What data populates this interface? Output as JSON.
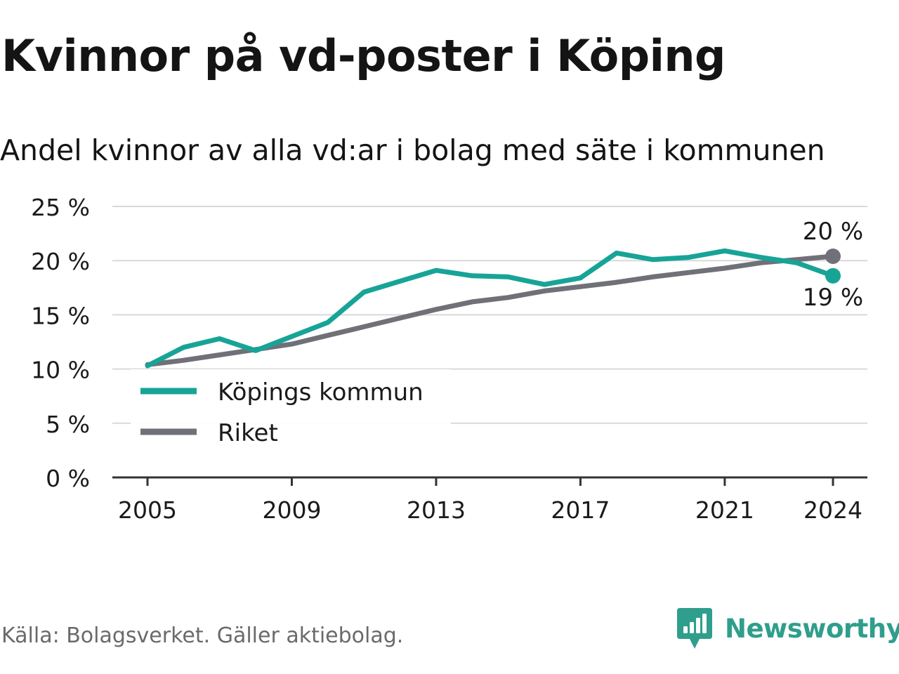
{
  "header": {
    "title": "Kvinnor på vd-poster i Köping",
    "subtitle": "Andel kvinnor av alla vd:ar i bolag med säte i kommunen"
  },
  "footer": {
    "source": "Källa: Bolagsverket. Gäller aktiebolag.",
    "logo_text": "Newsworthy"
  },
  "colors": {
    "kommun": "#17a497",
    "riket": "#707078",
    "grid": "#d9d9d9",
    "axis": "#333333",
    "logo": "#2f9e8c"
  },
  "chart_data": {
    "type": "line",
    "x": [
      2005,
      2006,
      2007,
      2008,
      2009,
      2010,
      2011,
      2012,
      2013,
      2014,
      2015,
      2016,
      2017,
      2018,
      2019,
      2020,
      2021,
      2022,
      2023,
      2024
    ],
    "series": [
      {
        "name": "Köpings kommun",
        "color": "#17a497",
        "values": [
          10.3,
          12.0,
          12.8,
          11.7,
          13.0,
          14.3,
          17.1,
          18.1,
          19.1,
          18.6,
          18.5,
          17.8,
          18.4,
          20.7,
          20.1,
          20.3,
          20.9,
          20.3,
          19.8,
          18.6
        ]
      },
      {
        "name": "Riket",
        "color": "#707078",
        "values": [
          10.4,
          10.8,
          11.3,
          11.8,
          12.3,
          13.1,
          13.9,
          14.7,
          15.5,
          16.2,
          16.6,
          17.2,
          17.6,
          18.0,
          18.5,
          18.9,
          19.3,
          19.8,
          20.1,
          20.4
        ]
      }
    ],
    "end_labels": {
      "Riket": "20 %",
      "Köpings kommun": "19 %"
    },
    "xticks": [
      2005,
      2009,
      2013,
      2017,
      2021,
      2024
    ],
    "xtick_labels": [
      "2005",
      "2009",
      "2013",
      "2017",
      "2021",
      "2024"
    ],
    "yticks": [
      0,
      5,
      10,
      15,
      20,
      25
    ],
    "ytick_labels": [
      "0 %",
      "5 %",
      "10 %",
      "15 %",
      "20 %",
      "25 %"
    ],
    "ylim": [
      0,
      25
    ],
    "xlim": [
      2005,
      2024
    ],
    "grid": true,
    "legend": {
      "placement": "bottom-left",
      "items": [
        "Köpings kommun",
        "Riket"
      ]
    },
    "xlabel": "",
    "ylabel": ""
  }
}
